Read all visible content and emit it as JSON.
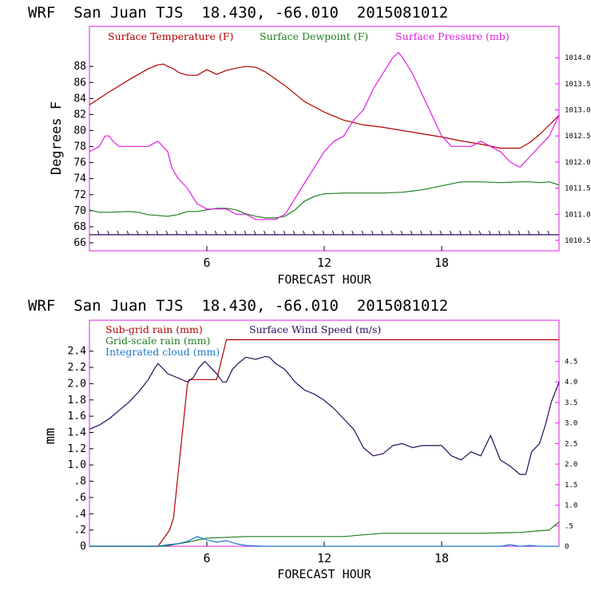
{
  "chart_data": [
    {
      "type": "line",
      "title": "WRF  San Juan TJS  18.430, -66.010  2015081012",
      "xlabel": "FORECAST HOUR",
      "ylabel": "Degrees F",
      "x_ticks": [
        "6",
        "12",
        "18"
      ],
      "xlim": [
        0,
        24
      ],
      "ylim": [
        65,
        93
      ],
      "y_ticks": [
        "66",
        "68",
        "70",
        "72",
        "74",
        "76",
        "78",
        "80",
        "82",
        "84",
        "86",
        "88"
      ],
      "y2lim": [
        1010.3,
        1014.6
      ],
      "y2_ticks": [
        "1010.5",
        "1011.0",
        "1011.5",
        "1012.0",
        "1012.5",
        "1013.0",
        "1013.5",
        "1014.0"
      ],
      "legend": "top",
      "series": [
        {
          "name": "Surface Temperature (F)",
          "color": "#b00000",
          "axis": "left",
          "x": [
            0,
            1,
            2,
            3,
            3.5,
            3.8,
            4,
            4.3,
            4.6,
            5,
            5.5,
            6,
            6.5,
            7,
            7.5,
            8,
            8.5,
            9,
            10,
            11,
            12,
            13,
            14,
            15,
            16,
            17,
            18,
            19,
            20,
            21,
            21.5,
            22,
            22.5,
            23,
            24
          ],
          "y": [
            83.2,
            84.8,
            86.3,
            87.7,
            88.2,
            88.3,
            88,
            87.7,
            87.2,
            86.9,
            86.9,
            87.6,
            87,
            87.5,
            87.8,
            88,
            87.9,
            87.3,
            85.6,
            83.6,
            82.3,
            81.3,
            80.7,
            80.4,
            80,
            79.6,
            79.2,
            78.7,
            78.3,
            77.8,
            77.8,
            77.8,
            78.5,
            79.5,
            81.9
          ]
        },
        {
          "name": "Surface Dewpoint (F)",
          "color": "#1e7f1e",
          "axis": "left",
          "x": [
            0,
            0.5,
            1,
            2,
            2.5,
            3,
            3.5,
            4,
            4.5,
            5,
            5.5,
            6,
            6.5,
            7,
            7.5,
            8,
            8.5,
            9,
            9.5,
            10,
            10.5,
            11,
            11.5,
            12,
            13,
            14,
            15,
            16,
            17,
            18,
            19,
            20,
            21,
            22,
            22.5,
            23,
            23.5,
            24
          ],
          "y": [
            70.1,
            69.8,
            69.8,
            69.9,
            69.8,
            69.5,
            69.4,
            69.3,
            69.5,
            69.9,
            69.9,
            70.1,
            70.3,
            70.3,
            70.1,
            69.6,
            69.3,
            69.1,
            69.1,
            69.3,
            70.1,
            71.2,
            71.8,
            72.1,
            72.2,
            72.2,
            72.2,
            72.3,
            72.6,
            73.1,
            73.6,
            73.6,
            73.5,
            73.6,
            73.6,
            73.5,
            73.6,
            73.2
          ]
        },
        {
          "name": "Surface Pressure (mb)",
          "color": "#e21ce2",
          "axis": "right",
          "x": [
            0,
            0.5,
            0.8,
            1,
            1.2,
            1.5,
            2,
            2.5,
            3,
            3.5,
            4,
            4.2,
            4.5,
            5,
            5.5,
            6,
            6.5,
            7,
            7.5,
            8,
            8.5,
            9,
            9.5,
            10,
            10.5,
            11,
            11.5,
            12,
            12.5,
            13,
            13.5,
            14,
            14.5,
            15,
            15.5,
            15.8,
            16,
            16.5,
            17,
            17.5,
            18,
            18.5,
            19,
            19.5,
            20,
            20.5,
            21,
            21.5,
            22,
            22.5,
            23,
            23.5,
            24
          ],
          "y": [
            1012.2,
            1012.3,
            1012.5,
            1012.5,
            1012.4,
            1012.3,
            1012.3,
            1012.3,
            1012.3,
            1012.4,
            1012.2,
            1011.9,
            1011.7,
            1011.5,
            1011.2,
            1011.1,
            1011.1,
            1011.1,
            1011.0,
            1011.0,
            1010.9,
            1010.9,
            1010.9,
            1011.0,
            1011.3,
            1011.6,
            1011.9,
            1012.2,
            1012.4,
            1012.5,
            1012.8,
            1013.0,
            1013.4,
            1013.7,
            1014.0,
            1014.1,
            1014.0,
            1013.7,
            1013.3,
            1012.9,
            1012.5,
            1012.3,
            1012.3,
            1012.3,
            1012.4,
            1012.3,
            1012.2,
            1012.0,
            1011.9,
            1012.1,
            1012.3,
            1012.5,
            1012.9
          ]
        },
        {
          "name": "",
          "color": "#2a0a5a",
          "axis": "left",
          "x": [
            0,
            24
          ],
          "y": [
            67,
            67
          ]
        }
      ]
    },
    {
      "type": "line",
      "title": "WRF  San Juan TJS  18.430, -66.010  2015081012",
      "xlabel": "FORECAST HOUR",
      "ylabel": "mm",
      "x_ticks": [
        "6",
        "12",
        "18"
      ],
      "xlim": [
        0,
        24
      ],
      "ylim": [
        0,
        2.78
      ],
      "y_ticks": [
        "0",
        ".2",
        ".4",
        ".6",
        ".8",
        "1.0",
        "1.2",
        "1.4",
        "1.6",
        "1.8",
        "2.0",
        "2.2",
        "2.4"
      ],
      "y2lim": [
        0,
        5.5
      ],
      "y2_ticks": [
        "0",
        ".5",
        "1.0",
        "1.5",
        "2.0",
        "2.5",
        "3.0",
        "3.5",
        "4.0",
        "4.5"
      ],
      "legend": "top-left",
      "series": [
        {
          "name": "Sub-grid rain (mm)",
          "color": "#b00000",
          "axis": "left",
          "x": [
            0,
            3.5,
            3.8,
            4.1,
            4.3,
            5,
            5.1,
            6,
            6.5,
            7,
            24
          ],
          "y": [
            0,
            0,
            0.1,
            0.2,
            0.35,
            1.98,
            2.05,
            2.05,
            2.05,
            2.54,
            2.54
          ]
        },
        {
          "name": "Grid-scale rain (mm)",
          "color": "#1e7f1e",
          "axis": "left",
          "x": [
            0,
            3.8,
            5,
            6,
            7,
            8,
            10,
            12,
            13,
            14,
            15,
            16,
            18,
            20,
            22,
            23.5,
            24
          ],
          "y": [
            0,
            0,
            0.05,
            0.1,
            0.11,
            0.12,
            0.12,
            0.12,
            0.12,
            0.14,
            0.16,
            0.16,
            0.16,
            0.16,
            0.17,
            0.2,
            0.3
          ]
        },
        {
          "name": "Integrated cloud (mm)",
          "color": "#1a78c8",
          "axis": "left",
          "x": [
            0,
            3.5,
            4,
            4.5,
            5,
            5.5,
            6,
            6.5,
            7,
            7.5,
            8,
            9,
            10,
            11,
            12,
            13,
            14,
            15,
            16,
            17,
            18,
            19,
            20,
            21,
            21.5,
            22,
            22.5,
            23,
            24
          ],
          "y": [
            0,
            0,
            0.02,
            0.03,
            0.06,
            0.12,
            0.08,
            0.05,
            0.07,
            0.03,
            0.01,
            0,
            0,
            0,
            0,
            0,
            0,
            0,
            0,
            0,
            0,
            0,
            0,
            0,
            0.02,
            0,
            0.01,
            0,
            0
          ]
        },
        {
          "name": "Surface Wind Speed (m/s)",
          "color": "#2a0a5a",
          "axis": "right",
          "x": [
            0,
            0.5,
            1,
            1.5,
            2,
            2.5,
            3,
            3.3,
            3.5,
            4,
            4.5,
            5,
            5.3,
            5.6,
            5.9,
            6.2,
            6.5,
            6.8,
            7,
            7.3,
            7.6,
            8,
            8.5,
            9,
            9.2,
            9.5,
            10,
            10.5,
            11,
            11.5,
            12,
            12.5,
            13,
            13.5,
            14,
            14.5,
            15,
            15.5,
            16,
            16.5,
            17,
            17.5,
            18,
            18.5,
            19,
            19.5,
            20,
            20.5,
            21,
            21.5,
            22,
            22.3,
            22.6,
            23,
            23.3,
            23.6,
            24
          ],
          "y": [
            2.85,
            2.95,
            3.1,
            3.3,
            3.5,
            3.75,
            4.05,
            4.3,
            4.45,
            4.2,
            4.1,
            4.0,
            4.1,
            4.35,
            4.5,
            4.35,
            4.2,
            4.0,
            4.0,
            4.3,
            4.45,
            4.6,
            4.55,
            4.62,
            4.6,
            4.45,
            4.3,
            4.0,
            3.8,
            3.7,
            3.55,
            3.35,
            3.1,
            2.85,
            2.4,
            2.2,
            2.25,
            2.45,
            2.5,
            2.4,
            2.45,
            2.45,
            2.45,
            2.2,
            2.1,
            2.3,
            2.2,
            2.7,
            2.1,
            1.95,
            1.75,
            1.75,
            2.3,
            2.5,
            2.95,
            3.5,
            4.0
          ]
        }
      ]
    }
  ]
}
